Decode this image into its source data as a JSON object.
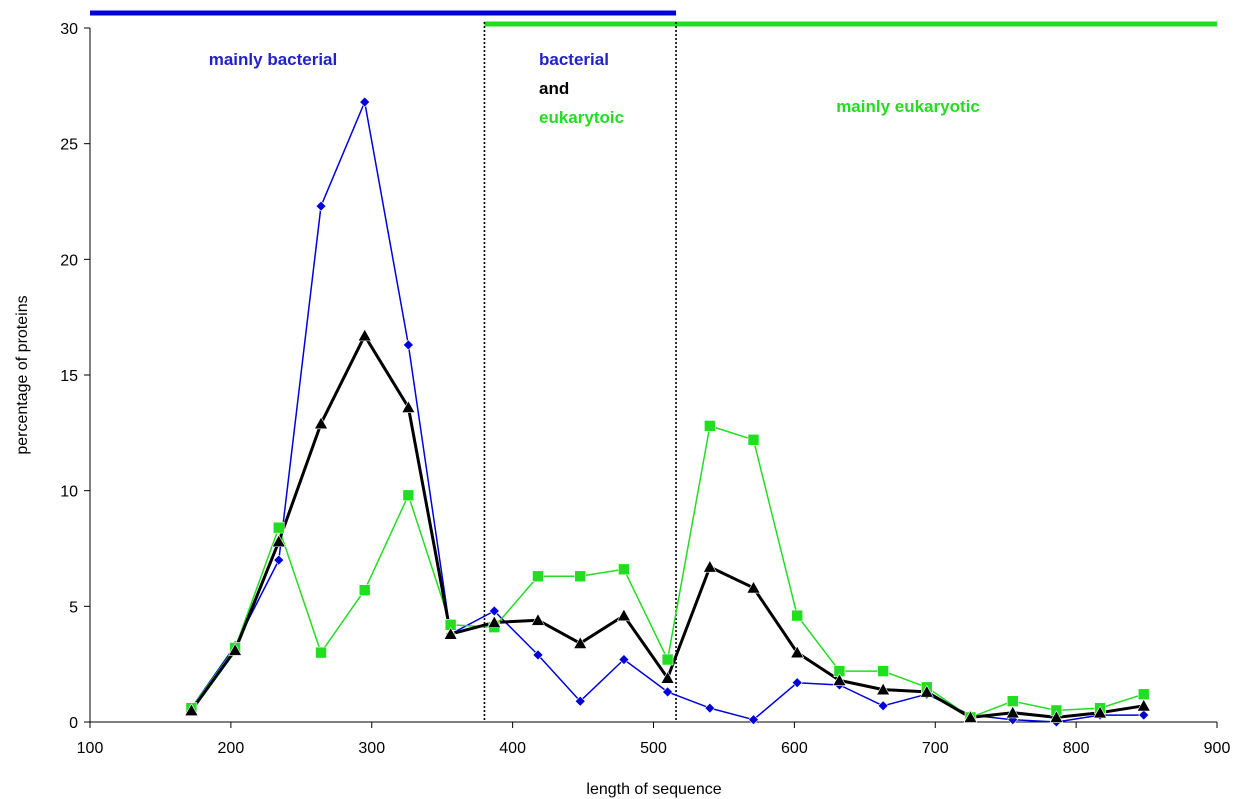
{
  "chart_data": {
    "type": "line",
    "title": "",
    "xlabel": "length of sequence",
    "ylabel": "percentage of proteins",
    "xlim": [
      100,
      900
    ],
    "ylim": [
      0,
      30
    ],
    "x_ticks": [
      100,
      200,
      300,
      400,
      500,
      600,
      700,
      800,
      900
    ],
    "y_ticks": [
      0,
      5,
      10,
      15,
      20,
      25,
      30
    ],
    "grid": false,
    "legend": "none",
    "x": [
      172,
      203,
      234,
      264,
      295,
      326,
      356,
      387,
      418,
      448,
      479,
      510,
      540,
      571,
      602,
      632,
      663,
      694,
      725,
      755,
      786,
      817,
      848
    ],
    "series": [
      {
        "color": "#0000dd",
        "marker": "diamond",
        "line_width": 1.5,
        "values": [
          0.6,
          3.3,
          7.0,
          22.3,
          26.8,
          16.3,
          3.8,
          4.8,
          2.9,
          0.9,
          2.7,
          1.3,
          0.6,
          0.1,
          1.7,
          1.6,
          0.7,
          1.2,
          0.3,
          0.1,
          0.0,
          0.3,
          0.3
        ]
      },
      {
        "color": "#22dd22",
        "marker": "square",
        "line_width": 1.5,
        "values": [
          0.6,
          3.2,
          8.4,
          3.0,
          5.7,
          9.8,
          4.2,
          4.1,
          6.3,
          6.3,
          6.6,
          2.7,
          12.8,
          12.2,
          4.6,
          2.2,
          2.2,
          1.5,
          0.2,
          0.9,
          0.5,
          0.6,
          1.2
        ]
      },
      {
        "color": "#000000",
        "marker": "triangle",
        "line_width": 3,
        "values": [
          0.5,
          3.1,
          7.8,
          12.9,
          16.7,
          13.6,
          3.8,
          4.3,
          4.4,
          3.4,
          4.6,
          1.9,
          6.7,
          5.8,
          3.0,
          1.8,
          1.4,
          1.3,
          0.2,
          0.4,
          0.2,
          0.4,
          0.7
        ]
      }
    ],
    "region_dividers": [
      380,
      516
    ],
    "range_bars": [
      {
        "from": 100,
        "to": 516,
        "color": "#0000dd",
        "position": "above plot"
      },
      {
        "from": 380,
        "to": 900,
        "color": "#22dd22",
        "position": "top edge"
      }
    ],
    "annotations": [
      {
        "lines": [
          {
            "text": "mainly bacterial",
            "color": "#2222cc"
          }
        ]
      },
      {
        "lines": [
          {
            "text": "bacterial",
            "color": "#2222cc"
          },
          {
            "text": "and",
            "color": "#000000"
          },
          {
            "text": "eukarytoic",
            "color": "#22dd22"
          }
        ]
      },
      {
        "lines": [
          {
            "text": "mainly eukaryotic",
            "color": "#22dd22"
          }
        ]
      }
    ]
  }
}
